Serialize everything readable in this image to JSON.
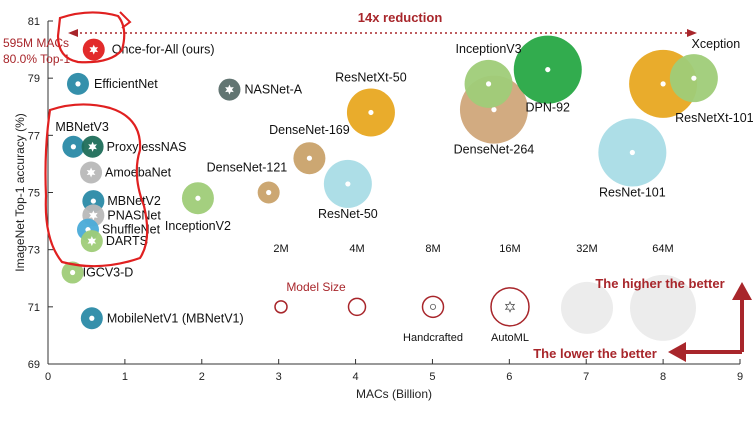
{
  "chart_data": {
    "type": "scatter",
    "title": "",
    "xlabel": "MACs (Billion)",
    "ylabel": "ImageNet Top-1 accuracy (%)",
    "xlim": [
      0,
      9
    ],
    "ylim": [
      69,
      81
    ],
    "xticks": [
      0,
      1,
      2,
      3,
      4,
      5,
      6,
      7,
      8,
      9
    ],
    "yticks": [
      69,
      71,
      73,
      75,
      77,
      79,
      81
    ],
    "grid": false,
    "points": [
      {
        "name": "Once-for-All (ours)",
        "macs": 0.595,
        "acc": 80.0,
        "size": "small",
        "color": "#e02020",
        "marker": "star"
      },
      {
        "name": "EfficientNet",
        "macs": 0.39,
        "acc": 78.8,
        "size": "small",
        "color": "#2a8aa6",
        "marker": "dot"
      },
      {
        "name": "NASNet-A",
        "macs": 2.36,
        "acc": 78.6,
        "size": "small",
        "color": "#5a6e6a",
        "marker": "star"
      },
      {
        "name": "MBNetV3",
        "macs": 0.33,
        "acc": 76.6,
        "size": "small",
        "color": "#2a8aa6",
        "marker": "dot"
      },
      {
        "name": "ProxylessNAS",
        "macs": 0.58,
        "acc": 76.6,
        "size": "small",
        "color": "#1f6e5a",
        "marker": "star"
      },
      {
        "name": "AmoebaNet",
        "macs": 0.56,
        "acc": 75.7,
        "size": "small",
        "color": "#b8b8b8",
        "marker": "star"
      },
      {
        "name": "MBNetV2",
        "macs": 0.59,
        "acc": 74.7,
        "size": "small",
        "color": "#2a8aa6",
        "marker": "dot"
      },
      {
        "name": "PNASNet",
        "macs": 0.59,
        "acc": 74.2,
        "size": "small",
        "color": "#b8b8b8",
        "marker": "star"
      },
      {
        "name": "ShuffleNet",
        "macs": 0.52,
        "acc": 73.7,
        "size": "small",
        "color": "#4aabd8",
        "marker": "dot"
      },
      {
        "name": "DARTS",
        "macs": 0.57,
        "acc": 73.3,
        "size": "small",
        "color": "#9fcc78",
        "marker": "star"
      },
      {
        "name": "IGCV3-D",
        "macs": 0.32,
        "acc": 72.2,
        "size": "small",
        "color": "#9fcc78",
        "marker": "dot"
      },
      {
        "name": "MobileNetV1 (MBNetV1)",
        "macs": 0.57,
        "acc": 70.6,
        "size": "small",
        "color": "#2a8aa6",
        "marker": "dot"
      },
      {
        "name": "InceptionV2",
        "macs": 1.95,
        "acc": 74.8,
        "size": "medium",
        "color": "#9fcc78",
        "marker": "dot"
      },
      {
        "name": "DenseNet-121",
        "macs": 2.87,
        "acc": 75.0,
        "size": "small",
        "color": "#c9a26a",
        "marker": "dot"
      },
      {
        "name": "DenseNet-169",
        "macs": 3.4,
        "acc": 76.2,
        "size": "medium",
        "color": "#c9a26a",
        "marker": "dot"
      },
      {
        "name": "ResNet-50",
        "macs": 3.9,
        "acc": 75.3,
        "size": "large",
        "color": "#a9dce6",
        "marker": "dot"
      },
      {
        "name": "ResNetXt-50",
        "macs": 4.2,
        "acc": 77.8,
        "size": "large",
        "color": "#e8a821",
        "marker": "dot"
      },
      {
        "name": "InceptionV3",
        "macs": 5.73,
        "acc": 78.8,
        "size": "large",
        "color": "#9fcc78",
        "marker": "dot"
      },
      {
        "name": "DenseNet-264",
        "macs": 5.8,
        "acc": 77.9,
        "size": "xlarge",
        "color": "#d0a77a",
        "marker": "dot"
      },
      {
        "name": "DPN-92",
        "macs": 6.5,
        "acc": 79.3,
        "size": "xlarge",
        "color": "#27a844",
        "marker": "dot"
      },
      {
        "name": "ResNet-101",
        "macs": 7.6,
        "acc": 76.4,
        "size": "xlarge",
        "color": "#a9dce6",
        "marker": "dot"
      },
      {
        "name": "ResNetXt-101",
        "macs": 8.0,
        "acc": 78.8,
        "size": "xlarge",
        "color": "#e8a821",
        "marker": "dot"
      },
      {
        "name": "Xception",
        "macs": 8.4,
        "acc": 79.0,
        "size": "large",
        "color": "#9fcc78",
        "marker": "dot"
      }
    ],
    "size_legend": {
      "title": "Model Size",
      "labels": [
        "2M",
        "4M",
        "8M",
        "16M",
        "32M",
        "64M"
      ],
      "marker_legend": [
        {
          "label": "Handcrafted",
          "marker": "dot"
        },
        {
          "label": "AutoML",
          "marker": "star"
        }
      ]
    },
    "annotations": {
      "reduction": "14x reduction",
      "ofa_macs": "595M MACs",
      "ofa_top1": "80.0% Top-1",
      "higher_better": "The higher the better",
      "lower_better": "The lower the better"
    }
  }
}
